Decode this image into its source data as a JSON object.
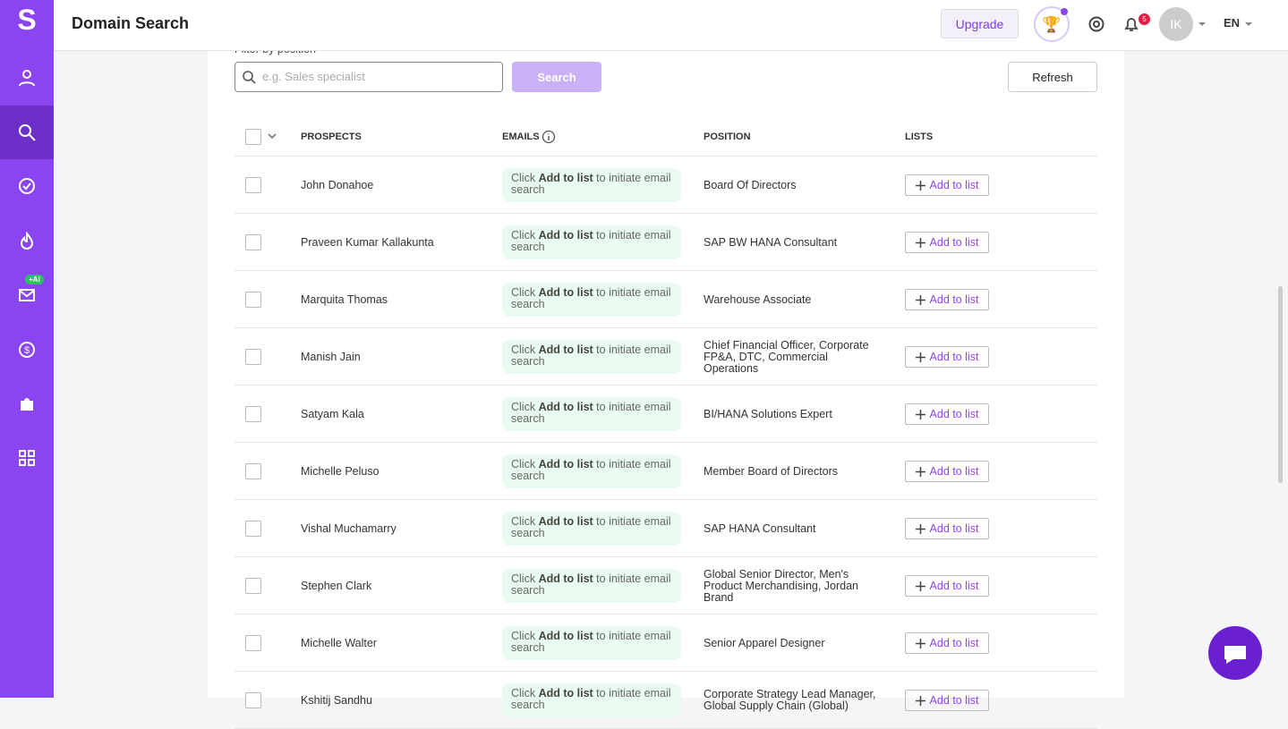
{
  "sidebar": {
    "logo": "S",
    "ai_badge": "+AI"
  },
  "header": {
    "title": "Domain Search",
    "upgrade": "Upgrade",
    "notifications": "5",
    "avatar": "IK",
    "language": "EN"
  },
  "filter": {
    "label": "Filter by position",
    "placeholder": "e.g. Sales specialist",
    "search": "Search",
    "refresh": "Refresh"
  },
  "table": {
    "columns": [
      "PROSPECTS",
      "EMAILS",
      "POSITION",
      "LISTS"
    ],
    "email_hint": {
      "prefix": "Click",
      "bold": "Add to list",
      "suffix": "to initiate email search"
    },
    "add_button": "Add to list",
    "rows": [
      {
        "name": "John Donahoe",
        "position": "Board Of Directors"
      },
      {
        "name": "Praveen Kumar Kallakunta",
        "position": "SAP BW HANA Consultant"
      },
      {
        "name": "Marquita Thomas",
        "position": "Warehouse Associate"
      },
      {
        "name": "Manish Jain",
        "position": "Chief Financial Officer, Corporate FP&A, DTC, Commercial Operations"
      },
      {
        "name": "Satyam Kala",
        "position": "BI/HANA Solutions Expert"
      },
      {
        "name": "Michelle Peluso",
        "position": "Member Board of Directors"
      },
      {
        "name": "Vishal Muchamarry",
        "position": "SAP HANA Consultant"
      },
      {
        "name": "Stephen Clark",
        "position": "Global Senior Director, Men's Product Merchandising, Jordan Brand"
      },
      {
        "name": "Michelle Walter",
        "position": "Senior Apparel Designer"
      },
      {
        "name": "Kshitij Sandhu",
        "position": "Corporate Strategy Lead Manager, Global Supply Chain (Global)"
      }
    ]
  }
}
